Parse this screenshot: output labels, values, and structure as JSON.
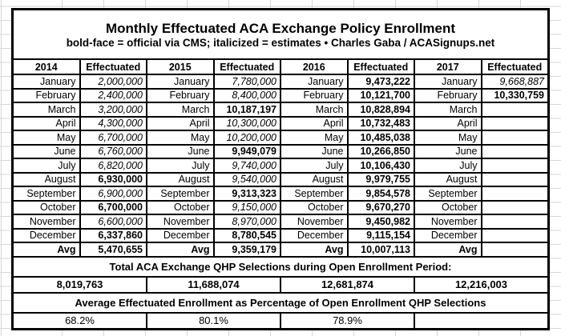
{
  "title": "Monthly Effectuated ACA Exchange Policy Enrollment",
  "subtitle": "bold-face = official via CMS; italicized = estimates  •  Charles Gaba / ACASignups.net",
  "columns": {
    "effectuated": "Effectuated"
  },
  "avg_label": "Avg",
  "sections": {
    "qhp_header": "Total ACA Exchange QHP Selections during Open Enrollment Period:",
    "pct_header": "Average Effectuated Enrollment as Percentage of Open Enrollment QHP Selections"
  },
  "years": [
    {
      "label": "2014",
      "months": [
        {
          "name": "January",
          "value": "2,000,000",
          "style": "est"
        },
        {
          "name": "February",
          "value": "2,400,000",
          "style": "est"
        },
        {
          "name": "March",
          "value": "3,200,000",
          "style": "est"
        },
        {
          "name": "April",
          "value": "4,300,000",
          "style": "est"
        },
        {
          "name": "May",
          "value": "6,700,000",
          "style": "est"
        },
        {
          "name": "June",
          "value": "6,760,000",
          "style": "est"
        },
        {
          "name": "July",
          "value": "6,820,000",
          "style": "est"
        },
        {
          "name": "August",
          "value": "6,930,000",
          "style": "off"
        },
        {
          "name": "September",
          "value": "6,900,000",
          "style": "est"
        },
        {
          "name": "October",
          "value": "6,700,000",
          "style": "off"
        },
        {
          "name": "November",
          "value": "6,600,000",
          "style": "est"
        },
        {
          "name": "December",
          "value": "6,337,860",
          "style": "off"
        }
      ],
      "avg": "5,470,655",
      "avg_style": "off",
      "qhp_total": "8,019,763",
      "pct": "68.2%"
    },
    {
      "label": "2015",
      "months": [
        {
          "name": "January",
          "value": "7,780,000",
          "style": "est"
        },
        {
          "name": "February",
          "value": "8,400,000",
          "style": "est"
        },
        {
          "name": "March",
          "value": "10,187,197",
          "style": "off"
        },
        {
          "name": "April",
          "value": "10,300,000",
          "style": "est"
        },
        {
          "name": "May",
          "value": "10,200,000",
          "style": "est"
        },
        {
          "name": "June",
          "value": "9,949,079",
          "style": "off"
        },
        {
          "name": "July",
          "value": "9,740,000",
          "style": "est"
        },
        {
          "name": "August",
          "value": "9,540,000",
          "style": "est"
        },
        {
          "name": "September",
          "value": "9,313,323",
          "style": "off"
        },
        {
          "name": "October",
          "value": "9,150,000",
          "style": "est"
        },
        {
          "name": "November",
          "value": "8,970,000",
          "style": "est"
        },
        {
          "name": "December",
          "value": "8,780,545",
          "style": "off"
        }
      ],
      "avg": "9,359,179",
      "avg_style": "off",
      "qhp_total": "11,688,074",
      "pct": "80.1%"
    },
    {
      "label": "2016",
      "months": [
        {
          "name": "January",
          "value": "9,473,222",
          "style": "off"
        },
        {
          "name": "February",
          "value": "10,121,700",
          "style": "off"
        },
        {
          "name": "March",
          "value": "10,828,894",
          "style": "off"
        },
        {
          "name": "April",
          "value": "10,732,483",
          "style": "off"
        },
        {
          "name": "May",
          "value": "10,485,038",
          "style": "off"
        },
        {
          "name": "June",
          "value": "10,266,850",
          "style": "off"
        },
        {
          "name": "July",
          "value": "10,106,430",
          "style": "off"
        },
        {
          "name": "August",
          "value": "9,979,755",
          "style": "off"
        },
        {
          "name": "September",
          "value": "9,854,578",
          "style": "off"
        },
        {
          "name": "October",
          "value": "9,670,270",
          "style": "off"
        },
        {
          "name": "November",
          "value": "9,450,982",
          "style": "off"
        },
        {
          "name": "December",
          "value": "9,115,154",
          "style": "off"
        }
      ],
      "avg": "10,007,113",
      "avg_style": "off",
      "qhp_total": "12,681,874",
      "pct": "78.9%"
    },
    {
      "label": "2017",
      "months": [
        {
          "name": "January",
          "value": "9,668,887",
          "style": "est"
        },
        {
          "name": "February",
          "value": "10,330,759",
          "style": "off"
        },
        {
          "name": "March",
          "value": "",
          "style": ""
        },
        {
          "name": "April",
          "value": "",
          "style": ""
        },
        {
          "name": "May",
          "value": "",
          "style": ""
        },
        {
          "name": "June",
          "value": "",
          "style": ""
        },
        {
          "name": "July",
          "value": "",
          "style": ""
        },
        {
          "name": "August",
          "value": "",
          "style": ""
        },
        {
          "name": "September",
          "value": "",
          "style": ""
        },
        {
          "name": "October",
          "value": "",
          "style": ""
        },
        {
          "name": "November",
          "value": "",
          "style": ""
        },
        {
          "name": "December",
          "value": "",
          "style": ""
        }
      ],
      "avg": "",
      "avg_style": "",
      "qhp_total": "12,216,003",
      "pct": ""
    }
  ]
}
